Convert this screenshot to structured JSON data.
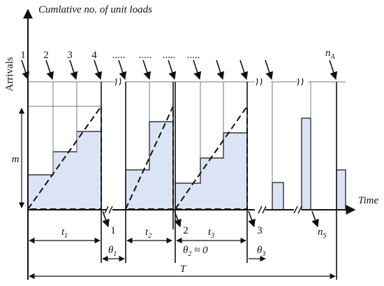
{
  "axis": {
    "y_label": "Cumlative no. of unit loads",
    "x_label": "Time",
    "arrivals_label": "Arrivals",
    "m_label": "m"
  },
  "arrivals": {
    "labels": [
      "1",
      "2",
      "3",
      "4"
    ],
    "dots": [
      ".....",
      ".....",
      ".....",
      "....."
    ],
    "last_label": "n",
    "last_sub": "A"
  },
  "departures": {
    "labels": [
      "1",
      "2",
      "3"
    ],
    "last_label": "n",
    "last_sub": "S"
  },
  "intervals": {
    "t1_main": "t",
    "t1_sub": "1",
    "t2_main": "t",
    "t2_sub": "2",
    "t3_main": "t",
    "t3_sub": "3",
    "theta1_main": "θ",
    "theta1_sub": "1",
    "theta2_main": "θ",
    "theta2_sub": "2",
    "theta2_tail": " ≈ 0",
    "theta3_main": "θ",
    "theta3_sub": "3",
    "total": "T"
  },
  "colors": {
    "fill": "#dbe4f5",
    "line": "#111111"
  }
}
